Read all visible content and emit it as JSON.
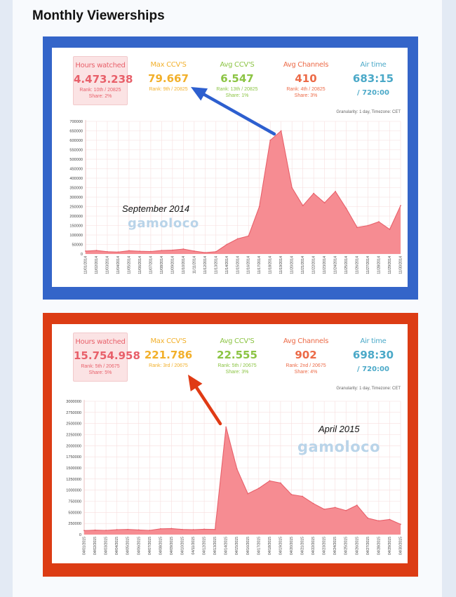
{
  "page_title": "Monthly Viewerships",
  "panels": [
    {
      "label": "September 2014",
      "watermark": "gamoloco",
      "granularity": "Granularity: 1 day, Timezone: CET",
      "stats": {
        "hours": {
          "label": "Hours watched",
          "value": "4.473.238",
          "rank": "Rank: 10th / 20825",
          "share": "Share: 2%"
        },
        "max": {
          "label": "Max CCV'S",
          "value": "79.667",
          "rank": "Rank: 9th / 20825",
          "share": ""
        },
        "avgccv": {
          "label": "Avg CCV'S",
          "value": "6.547",
          "rank": "Rank: 13th / 20825",
          "share": "Share: 1%"
        },
        "chan": {
          "label": "Avg Channels",
          "value": "410",
          "rank": "Rank: 4th / 20825",
          "share": "Share: 3%"
        },
        "air": {
          "label": "Air time",
          "value": "683:15",
          "rank": "/ 720:00",
          "share": ""
        }
      }
    },
    {
      "label": "April 2015",
      "watermark": "gamoloco",
      "granularity": "Granularity: 1 day, Timezone: CET",
      "stats": {
        "hours": {
          "label": "Hours watched",
          "value": "15.754.958",
          "rank": "Rank: 5th / 20675",
          "share": "Share: 5%"
        },
        "max": {
          "label": "Max CCV'S",
          "value": "221.786",
          "rank": "Rank: 3rd / 20675",
          "share": ""
        },
        "avgccv": {
          "label": "Avg CCV'S",
          "value": "22.555",
          "rank": "Rank: 5th / 20675",
          "share": "Share: 3%"
        },
        "chan": {
          "label": "Avg Channels",
          "value": "902",
          "rank": "Rank: 2nd / 20675",
          "share": "Share: 4%"
        },
        "air": {
          "label": "Air time",
          "value": "698:30",
          "rank": "/ 720:00",
          "share": ""
        }
      }
    }
  ],
  "colors": {
    "frame_top": "#3465c9",
    "frame_bottom": "#dc3c14",
    "area_fill": "#f68c92",
    "area_line": "#e8606a",
    "arrow_top": "#2d5fcf",
    "arrow_bottom": "#e03a14"
  },
  "chart_data": [
    {
      "type": "area",
      "x": [
        "11/01/2014",
        "11/02/2014",
        "11/03/2014",
        "11/04/2014",
        "11/05/2014",
        "11/06/2014",
        "11/07/2014",
        "11/08/2014",
        "11/09/2014",
        "11/10/2014",
        "11/11/2014",
        "11/12/2014",
        "11/13/2014",
        "11/14/2014",
        "11/15/2014",
        "11/16/2014",
        "11/17/2014",
        "11/18/2014",
        "11/19/2014",
        "11/20/2014",
        "11/21/2014",
        "11/22/2014",
        "11/23/2014",
        "11/24/2014",
        "11/25/2014",
        "11/26/2014",
        "11/27/2014",
        "11/28/2014",
        "11/29/2014",
        "11/30/2014"
      ],
      "values": [
        15000,
        18000,
        12000,
        10000,
        17000,
        14000,
        13000,
        18000,
        20000,
        26000,
        15000,
        7000,
        12000,
        50000,
        80000,
        95000,
        250000,
        600000,
        650000,
        350000,
        255000,
        320000,
        270000,
        330000,
        240000,
        140000,
        150000,
        170000,
        130000,
        255000
      ],
      "ylim": [
        0,
        700000
      ],
      "yticks": [
        0,
        50000,
        100000,
        150000,
        200000,
        250000,
        300000,
        350000,
        400000,
        450000,
        500000,
        550000,
        600000,
        650000,
        700000
      ]
    },
    {
      "type": "area",
      "x": [
        "04/01/2015",
        "04/02/2015",
        "04/03/2015",
        "04/04/2015",
        "04/05/2015",
        "04/06/2015",
        "04/07/2015",
        "04/08/2015",
        "04/09/2015",
        "04/10/2015",
        "04/11/2015",
        "04/12/2015",
        "04/13/2015",
        "04/14/2015",
        "04/15/2015",
        "04/16/2015",
        "04/17/2015",
        "04/18/2015",
        "04/19/2015",
        "04/20/2015",
        "04/21/2015",
        "04/22/2015",
        "04/23/2015",
        "04/24/2015",
        "04/25/2015",
        "04/26/2015",
        "04/27/2015",
        "04/28/2015",
        "04/29/2015",
        "04/30/2015"
      ],
      "values": [
        90000,
        100000,
        95000,
        110000,
        115000,
        105000,
        95000,
        130000,
        135000,
        115000,
        110000,
        120000,
        115000,
        2420000,
        1480000,
        920000,
        1040000,
        1210000,
        1160000,
        900000,
        860000,
        700000,
        570000,
        610000,
        540000,
        660000,
        370000,
        310000,
        340000,
        230000
      ],
      "ylim": [
        0,
        3000000
      ],
      "yticks": [
        0,
        250000,
        500000,
        750000,
        1000000,
        1250000,
        1500000,
        1750000,
        2000000,
        2250000,
        2500000,
        2750000,
        3000000
      ]
    }
  ]
}
